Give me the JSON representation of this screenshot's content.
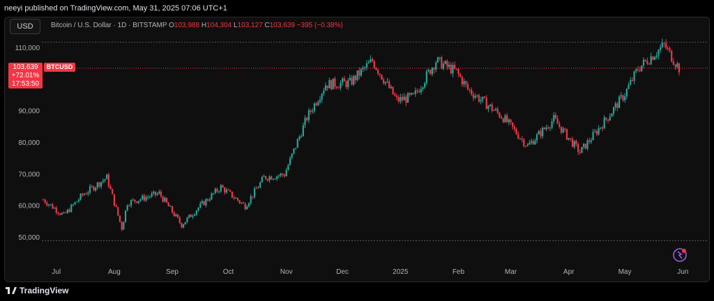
{
  "header": {
    "published_text": "neeyi published on TradingView.com, May 31, 2025 07:06 UTC+1"
  },
  "toolbar": {
    "currency_button": "USD"
  },
  "legend": {
    "symbol_desc": "Bitcoin / U.S. Dollar · 1D · BITSTAMP",
    "open_label": "O",
    "open": "103,988",
    "high_label": "H",
    "high": "104,304",
    "low_label": "L",
    "low": "103,127",
    "close_label": "C",
    "close": "103,639",
    "change": "−395 (−0.38%)"
  },
  "price_tag": {
    "price": "103,639",
    "change_pct": "+72.01%",
    "countdown": "17:53:50",
    "symbol": "BTCUSD"
  },
  "footer": {
    "brand": "TradingView"
  },
  "colors": {
    "up": "#26a69a",
    "down": "#f23645",
    "grid": "#1e1e1e",
    "background": "#0f0f0f"
  },
  "chart_data": {
    "type": "candlestick",
    "title": "Bitcoin / U.S. Dollar · 1D · BITSTAMP",
    "ylim": [
      48000,
      112000
    ],
    "y_ticks": [
      50000,
      60000,
      70000,
      80000,
      90000,
      100000,
      110000
    ],
    "y_tick_labels": [
      "50,000",
      "60,000",
      "70,000",
      "80,000",
      "90,000",
      "",
      "110,000"
    ],
    "x_tick_labels": [
      "Jul",
      "Aug",
      "Sep",
      "Oct",
      "Nov",
      "Dec",
      "2025",
      "Feb",
      "Mar",
      "Apr",
      "May",
      "Jun"
    ],
    "x_tick_dates": [
      "2024-07-01",
      "2024-08-01",
      "2024-09-01",
      "2024-10-01",
      "2024-11-01",
      "2024-12-01",
      "2025-01-01",
      "2025-02-01",
      "2025-03-01",
      "2025-04-01",
      "2025-05-01",
      "2025-06-01"
    ],
    "x_range": [
      "2024-06-24",
      "2025-06-02"
    ],
    "last_price": 103639,
    "period_high": 111900,
    "period_low": 49000,
    "close_series": {
      "dates": [
        "2024-06-24",
        "2024-07-05",
        "2024-07-15",
        "2024-07-28",
        "2024-08-05",
        "2024-08-08",
        "2024-08-25",
        "2024-09-06",
        "2024-09-15",
        "2024-09-27",
        "2024-10-10",
        "2024-10-20",
        "2024-10-31",
        "2024-11-12",
        "2024-11-22",
        "2024-12-05",
        "2024-12-17",
        "2024-12-30",
        "2025-01-08",
        "2025-01-20",
        "2025-01-31",
        "2025-02-06",
        "2025-02-25",
        "2025-03-10",
        "2025-03-24",
        "2025-04-07",
        "2025-04-21",
        "2025-05-01",
        "2025-05-08",
        "2025-05-22",
        "2025-05-30"
      ],
      "values": [
        62000,
        57000,
        63500,
        69000,
        53000,
        61000,
        64000,
        54000,
        59500,
        66000,
        60000,
        69000,
        70000,
        88000,
        98500,
        99000,
        106000,
        93500,
        94500,
        106000,
        102500,
        97000,
        88000,
        79000,
        87500,
        77000,
        87500,
        95500,
        103500,
        111000,
        103639
      ]
    }
  }
}
